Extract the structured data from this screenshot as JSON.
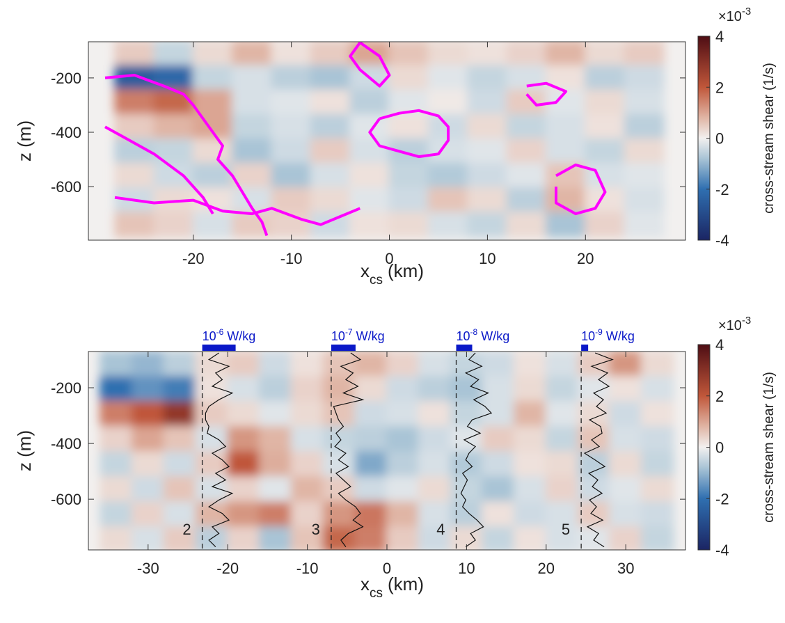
{
  "chart_data": [
    {
      "type": "contourf",
      "xlim": [
        -30.7,
        30.2
      ],
      "ylim": [
        -797,
        -67
      ],
      "xticks": [
        -20,
        -10,
        0,
        10,
        20
      ],
      "yticks": [
        -600,
        -400,
        -200
      ],
      "xlabel": {
        "main": "x",
        "sub": "cs",
        "unit": "(km)"
      },
      "ylabel": "z (m)",
      "colorbar": {
        "label": "cross-stream shear (1/s)",
        "clim": [
          -4,
          4
        ],
        "ticks": [
          -4,
          -2,
          0,
          2,
          4
        ],
        "multiplier_base": "×10",
        "multiplier_exp": "-3"
      },
      "x": [
        -26,
        -22,
        -18,
        -14,
        -10,
        -6,
        -2,
        2,
        6,
        10,
        14,
        18,
        22,
        26
      ],
      "z": [
        -110,
        -200,
        -290,
        -380,
        -470,
        -560,
        -650,
        -740
      ],
      "values": [
        [
          0.5,
          -0.5,
          0.3,
          0.8,
          0.2,
          0.5,
          1.0,
          0.6,
          0.3,
          0.2,
          0.4,
          0.8,
          0.3,
          0.5
        ],
        [
          -2.5,
          -2.2,
          -0.5,
          -0.3,
          -0.6,
          -0.8,
          -0.4,
          0.3,
          -0.2,
          -0.5,
          -0.3,
          0.2,
          -0.6,
          -0.4
        ],
        [
          1.5,
          1.8,
          1.0,
          -0.3,
          -0.2,
          0.2,
          -0.6,
          -0.2,
          0.1,
          -0.4,
          0.5,
          -0.2,
          0.3,
          -0.3
        ],
        [
          0.5,
          0.8,
          1.0,
          -0.5,
          -0.3,
          -0.6,
          -0.2,
          0.2,
          -0.4,
          0.3,
          -0.5,
          -0.3,
          0.2,
          -0.6
        ],
        [
          -0.6,
          -0.5,
          0.3,
          -0.8,
          -0.4,
          0.5,
          -0.3,
          -0.6,
          -0.3,
          -0.2,
          0.4,
          -0.3,
          -0.5,
          0.3
        ],
        [
          0.3,
          -0.4,
          -0.6,
          0.4,
          -0.8,
          -0.3,
          0.2,
          -0.5,
          -0.7,
          -0.4,
          -0.2,
          0.6,
          -0.3,
          -0.2
        ],
        [
          -0.4,
          0.3,
          0.2,
          -0.3,
          0.5,
          0.3,
          -0.2,
          -0.4,
          0.6,
          0.3,
          -0.6,
          0.8,
          0.2,
          -0.3
        ],
        [
          0.6,
          0.4,
          -0.3,
          0.5,
          0.4,
          -0.4,
          0.2,
          0.3,
          -0.3,
          -0.5,
          0.3,
          -0.8,
          0.4,
          -0.2
        ]
      ],
      "contour_color": "#ff00ff",
      "contours": [
        {
          "x": [
            -29,
            -26,
            -23,
            -21,
            -20,
            -19,
            -18,
            -17,
            -17.5,
            -16,
            -15,
            -14,
            -13,
            -12.5
          ],
          "z": [
            -200,
            -190,
            -230,
            -260,
            -300,
            -350,
            -400,
            -450,
            -500,
            -560,
            -620,
            -680,
            -730,
            -780
          ]
        },
        {
          "x": [
            -29,
            -27,
            -24,
            -21,
            -19,
            -18
          ],
          "z": [
            -380,
            -420,
            -480,
            -560,
            -640,
            -700
          ]
        },
        {
          "x": [
            -1,
            1,
            3,
            5,
            6,
            6,
            5,
            3,
            1,
            -1,
            -2,
            -1
          ],
          "z": [
            -350,
            -330,
            -320,
            -340,
            -380,
            -430,
            -480,
            -490,
            -470,
            -450,
            -400,
            -350
          ]
        },
        {
          "x": [
            -3,
            -4,
            -3,
            -1,
            0,
            -1,
            -3
          ],
          "z": [
            -70,
            -120,
            -170,
            -230,
            -190,
            -120,
            -70
          ]
        },
        {
          "x": [
            17,
            19,
            21,
            22,
            21,
            19,
            17,
            17
          ],
          "z": [
            -560,
            -520,
            -540,
            -620,
            -680,
            -700,
            -660,
            -600
          ]
        },
        {
          "x": [
            -28,
            -24,
            -20,
            -17,
            -14,
            -12,
            -9,
            -7,
            -5,
            -3
          ],
          "z": [
            -640,
            -660,
            -650,
            -690,
            -700,
            -680,
            -720,
            -740,
            -710,
            -680
          ]
        },
        {
          "x": [
            14,
            16,
            18,
            17,
            15,
            14
          ],
          "z": [
            -230,
            -220,
            -250,
            -290,
            -300,
            -260
          ]
        }
      ]
    },
    {
      "type": "contourf",
      "xlim": [
        -37.5,
        37.5
      ],
      "ylim": [
        -782,
        -70
      ],
      "xticks": [
        -30,
        -20,
        -10,
        0,
        10,
        20,
        30
      ],
      "yticks": [
        -600,
        -400,
        -200
      ],
      "xlabel": {
        "main": "x",
        "sub": "cs",
        "unit": "(km)"
      },
      "ylabel": "z (m)",
      "colorbar": {
        "label": "cross-stream shear (1/s)",
        "clim": [
          -4,
          4
        ],
        "ticks": [
          -4,
          -2,
          0,
          2,
          4
        ],
        "multiplier_base": "×10",
        "multiplier_exp": "-3"
      },
      "x": [
        -34,
        -30,
        -26,
        -22,
        -18,
        -14,
        -10,
        -6,
        -2,
        2,
        6,
        10,
        14,
        18,
        22,
        26,
        30,
        34
      ],
      "z": [
        -115,
        -205,
        -295,
        -385,
        -475,
        -565,
        -655,
        -745
      ],
      "values": [
        [
          -0.8,
          -1.0,
          -0.6,
          0.3,
          0.5,
          -0.4,
          0.2,
          0.6,
          0.8,
          0.4,
          -0.3,
          -0.5,
          -0.4,
          0.2,
          -0.3,
          0.5,
          1.2,
          0.3
        ],
        [
          -2.0,
          -1.5,
          -1.8,
          0.2,
          -0.3,
          -0.6,
          0.4,
          0.8,
          0.3,
          -0.4,
          -0.6,
          -0.8,
          -0.3,
          0.3,
          -0.5,
          -0.2,
          0.2,
          -0.3
        ],
        [
          1.5,
          2.0,
          2.8,
          0.5,
          0.3,
          -0.2,
          0.3,
          0.6,
          -0.4,
          -0.3,
          0.2,
          -0.5,
          -0.3,
          0.8,
          -0.2,
          0.3,
          -0.4,
          0.2
        ],
        [
          0.4,
          1.0,
          0.6,
          -0.3,
          1.2,
          0.8,
          -0.3,
          -0.5,
          -0.6,
          -0.8,
          -0.4,
          -0.2,
          0.5,
          0.3,
          -0.5,
          0.6,
          -0.3,
          -0.4
        ],
        [
          -0.5,
          0.3,
          -0.4,
          0.5,
          2.0,
          0.9,
          0.4,
          -0.3,
          -1.2,
          -0.6,
          -0.3,
          -0.7,
          -0.4,
          0.2,
          0.3,
          -0.6,
          0.3,
          -0.5
        ],
        [
          0.3,
          -0.4,
          0.6,
          -0.3,
          0.4,
          -0.2,
          0.8,
          0.5,
          -0.4,
          -0.2,
          0.3,
          -0.5,
          -0.8,
          -0.3,
          0.4,
          -0.4,
          -0.2,
          0.3
        ],
        [
          -0.5,
          0.4,
          -0.3,
          0.8,
          1.2,
          1.5,
          0.4,
          1.2,
          1.6,
          0.8,
          -0.3,
          -0.6,
          0.2,
          -0.4,
          -0.3,
          0.5,
          -0.3,
          -0.4
        ],
        [
          0.3,
          -0.3,
          0.5,
          -0.6,
          0.4,
          -0.8,
          0.6,
          1.8,
          1.5,
          0.5,
          -0.4,
          0.3,
          -0.5,
          0.2,
          -0.3,
          -0.2,
          0.4,
          -0.5
        ]
      ],
      "profile_z": [
        -75,
        -99,
        -123,
        -147,
        -171,
        -195,
        -219,
        -243,
        -267,
        -291,
        -315,
        -339,
        -363,
        -387,
        -411,
        -435,
        -459,
        -483,
        -507,
        -531,
        -555,
        -579,
        -603,
        -627,
        -651,
        -675,
        -699,
        -723,
        -747,
        -771
      ],
      "profiles": [
        {
          "label": "2",
          "x0": -23.2,
          "scale": 1e-06,
          "scale_base": "10",
          "scale_exp": "-6",
          "scale_unit": "W/kg",
          "values": [
            5e-07,
            2e-07,
            8e-07,
            4e-07,
            6e-07,
            3e-07,
            9e-07,
            5e-07,
            2e-07,
            1e-07,
            1e-07,
            2e-07,
            1.5e-07,
            5e-07,
            7e-07,
            3e-07,
            6e-07,
            8e-07,
            4e-07,
            7e-07,
            3e-07,
            9e-07,
            5e-07,
            2e-07,
            6e-07,
            8e-07,
            3e-07,
            5e-07,
            2e-07,
            4e-07
          ]
        },
        {
          "label": "3",
          "x0": -7.0,
          "scale": 1e-07,
          "scale_base": "10",
          "scale_exp": "-7",
          "scale_unit": "W/kg",
          "values": [
            8e-08,
            1.2e-07,
            4e-08,
            9e-08,
            6e-08,
            1.1e-07,
            5e-08,
            1.3e-07,
            1e-08,
            2e-08,
            3e-08,
            5e-08,
            2e-08,
            4e-08,
            1.5e-08,
            6e-08,
            3e-08,
            7e-08,
            2e-08,
            5e-08,
            8e-08,
            3e-08,
            6e-08,
            1e-07,
            1.2e-07,
            9e-08,
            1.3e-07,
            7e-08,
            4e-08,
            6e-08
          ]
        },
        {
          "label": "4",
          "x0": 8.7,
          "scale": 1e-08,
          "scale_base": "10",
          "scale_exp": "-8",
          "scale_unit": "W/kg",
          "values": [
            1.2e-08,
            8e-09,
            1.6e-08,
            6e-09,
            1.4e-08,
            9e-09,
            2e-08,
            1.1e-08,
            1.8e-08,
            2.2e-08,
            1e-08,
            7e-09,
            1.5e-08,
            5e-09,
            1.2e-08,
            8e-09,
            6e-09,
            1e-08,
            4e-09,
            7e-09,
            5e-09,
            3e-09,
            6e-09,
            4e-09,
            8e-09,
            1.3e-08,
            1.7e-08,
            9e-09,
            1.2e-08,
            6e-09
          ]
        },
        {
          "label": "5",
          "x0": 24.4,
          "scale": 1e-09,
          "scale_base": "10",
          "scale_exp": "-9",
          "scale_unit": "W/kg",
          "values": [
            2e-09,
            4.5e-09,
            1.5e-09,
            3.8e-09,
            2.5e-09,
            4e-09,
            1.8e-09,
            3.2e-09,
            2.2e-09,
            3.6e-09,
            1.2e-09,
            2.8e-09,
            3e-09,
            1.5e-09,
            2.6e-09,
            5e-10,
            2e-09,
            3.4e-09,
            1.1e-09,
            2.4e-09,
            1.6e-09,
            3e-09,
            1.2e-09,
            2.2e-09,
            1.4e-09,
            3.1e-09,
            9e-10,
            2.5e-09,
            1.8e-09,
            3.3e-09
          ]
        }
      ]
    }
  ]
}
